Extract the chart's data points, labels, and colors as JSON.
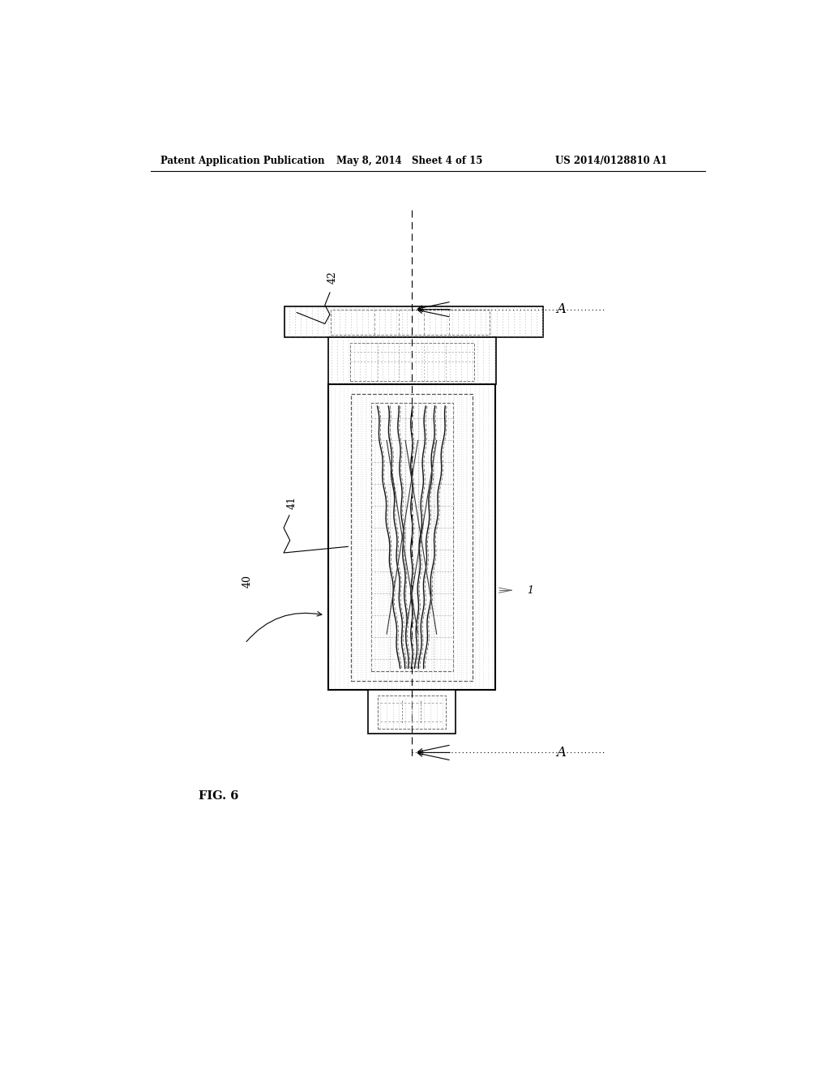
{
  "title_left": "Patent Application Publication",
  "title_mid": "May 8, 2014   Sheet 4 of 15",
  "title_right": "US 2014/0128810 A1",
  "fig_label": "FIG. 6",
  "label_40": "40",
  "label_41": "41",
  "label_42": "42",
  "label_1": "1",
  "label_A_top": "A",
  "label_A_bottom": "A",
  "bg_color": "#ffffff",
  "line_color": "#000000"
}
